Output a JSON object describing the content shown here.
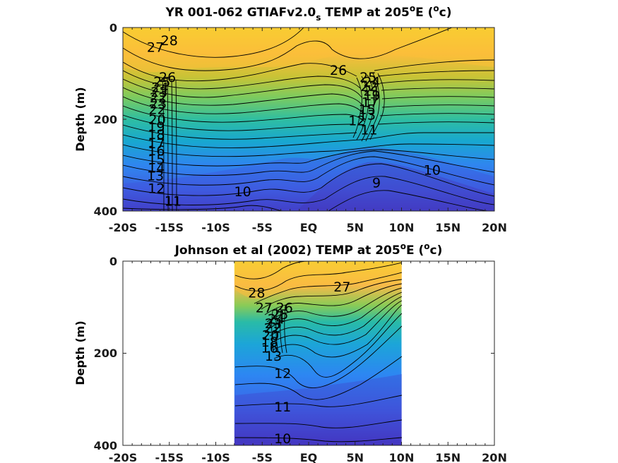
{
  "chart_data": [
    {
      "type": "contour",
      "title": "YR 001-062 GTIAFv2.0",
      "title_sub": "s",
      "title_rest": " TEMP at 205",
      "title_sup": "o",
      "title_rest2": "E (",
      "title_sup2": "o",
      "title_end": "c)",
      "xlabel": "",
      "ylabel": "Depth (m)",
      "xlim": [
        -20,
        20
      ],
      "ylim": [
        0,
        400
      ],
      "x_ticks": [
        "-20S",
        "-15S",
        "-10S",
        "-5S",
        "EQ",
        "5N",
        "10N",
        "15N",
        "20N"
      ],
      "y_ticks": [
        "0",
        "200",
        "400"
      ],
      "data_extent": [
        -20,
        20
      ],
      "contour_labels": [
        {
          "text": "28",
          "lat": -15,
          "depth": 28
        },
        {
          "text": "27",
          "lat": -16.5,
          "depth": 42
        },
        {
          "text": "26",
          "lat": -15.2,
          "depth": 108
        },
        {
          "text": "25",
          "lat": -15.8,
          "depth": 118
        },
        {
          "text": "24",
          "lat": -16.0,
          "depth": 130
        },
        {
          "text": "23",
          "lat": -16.1,
          "depth": 140
        },
        {
          "text": "22",
          "lat": -16.2,
          "depth": 152
        },
        {
          "text": "23",
          "lat": -16.2,
          "depth": 165
        },
        {
          "text": "22",
          "lat": -16.3,
          "depth": 178
        },
        {
          "text": "20",
          "lat": -16.3,
          "depth": 200
        },
        {
          "text": "19",
          "lat": -16.4,
          "depth": 215
        },
        {
          "text": "18",
          "lat": -16.4,
          "depth": 232
        },
        {
          "text": "17",
          "lat": -16.4,
          "depth": 252
        },
        {
          "text": "16",
          "lat": -16.4,
          "depth": 268
        },
        {
          "text": "15",
          "lat": -16.4,
          "depth": 287
        },
        {
          "text": "14",
          "lat": -16.4,
          "depth": 305
        },
        {
          "text": "13",
          "lat": -16.5,
          "depth": 322
        },
        {
          "text": "12",
          "lat": -16.4,
          "depth": 350
        },
        {
          "text": "11",
          "lat": -14.6,
          "depth": 378
        },
        {
          "text": "10",
          "lat": -7.1,
          "depth": 357
        },
        {
          "text": "26",
          "lat": 3.2,
          "depth": 92
        },
        {
          "text": "25",
          "lat": 6.4,
          "depth": 108
        },
        {
          "text": "24",
          "lat": 6.8,
          "depth": 118
        },
        {
          "text": "22",
          "lat": 6.5,
          "depth": 128
        },
        {
          "text": "21",
          "lat": 6.8,
          "depth": 138
        },
        {
          "text": "19",
          "lat": 6.8,
          "depth": 148
        },
        {
          "text": "17",
          "lat": 6.6,
          "depth": 162
        },
        {
          "text": "15",
          "lat": 6.3,
          "depth": 178
        },
        {
          "text": "13",
          "lat": 6.3,
          "depth": 190
        },
        {
          "text": "12",
          "lat": 5.2,
          "depth": 202
        },
        {
          "text": "11",
          "lat": 6.5,
          "depth": 222
        },
        {
          "text": "10",
          "lat": 13.3,
          "depth": 310
        },
        {
          "text": "9",
          "lat": 7.3,
          "depth": 338
        }
      ]
    },
    {
      "type": "contour",
      "title": "Johnson et al (2002) TEMP at 205",
      "title_sub": "",
      "title_rest": "",
      "title_sup": "o",
      "title_rest2": "E (",
      "title_sup2": "o",
      "title_end": "c)",
      "xlabel": "",
      "ylabel": "Depth (m)",
      "xlim": [
        -20,
        20
      ],
      "ylim": [
        0,
        400
      ],
      "x_ticks": [
        "-20S",
        "-15S",
        "-10S",
        "-5S",
        "EQ",
        "5N",
        "10N",
        "15N",
        "20N"
      ],
      "y_ticks": [
        "0",
        "200",
        "400"
      ],
      "data_extent": [
        -8,
        10
      ],
      "contour_labels": [
        {
          "text": "28",
          "lat": -5.6,
          "depth": 68
        },
        {
          "text": "27",
          "lat": -4.8,
          "depth": 100
        },
        {
          "text": "27",
          "lat": 3.6,
          "depth": 55
        },
        {
          "text": "26",
          "lat": -2.6,
          "depth": 100
        },
        {
          "text": "25",
          "lat": -3.1,
          "depth": 115
        },
        {
          "text": "24",
          "lat": -3.5,
          "depth": 125
        },
        {
          "text": "23",
          "lat": -3.8,
          "depth": 135
        },
        {
          "text": "22",
          "lat": -3.9,
          "depth": 145
        },
        {
          "text": "20",
          "lat": -4.1,
          "depth": 160
        },
        {
          "text": "18",
          "lat": -4.2,
          "depth": 175
        },
        {
          "text": "16",
          "lat": -4.2,
          "depth": 188
        },
        {
          "text": "13",
          "lat": -3.8,
          "depth": 205
        },
        {
          "text": "12",
          "lat": -2.8,
          "depth": 243
        },
        {
          "text": "11",
          "lat": -2.8,
          "depth": 316
        },
        {
          "text": "10",
          "lat": -2.8,
          "depth": 385
        }
      ]
    }
  ]
}
